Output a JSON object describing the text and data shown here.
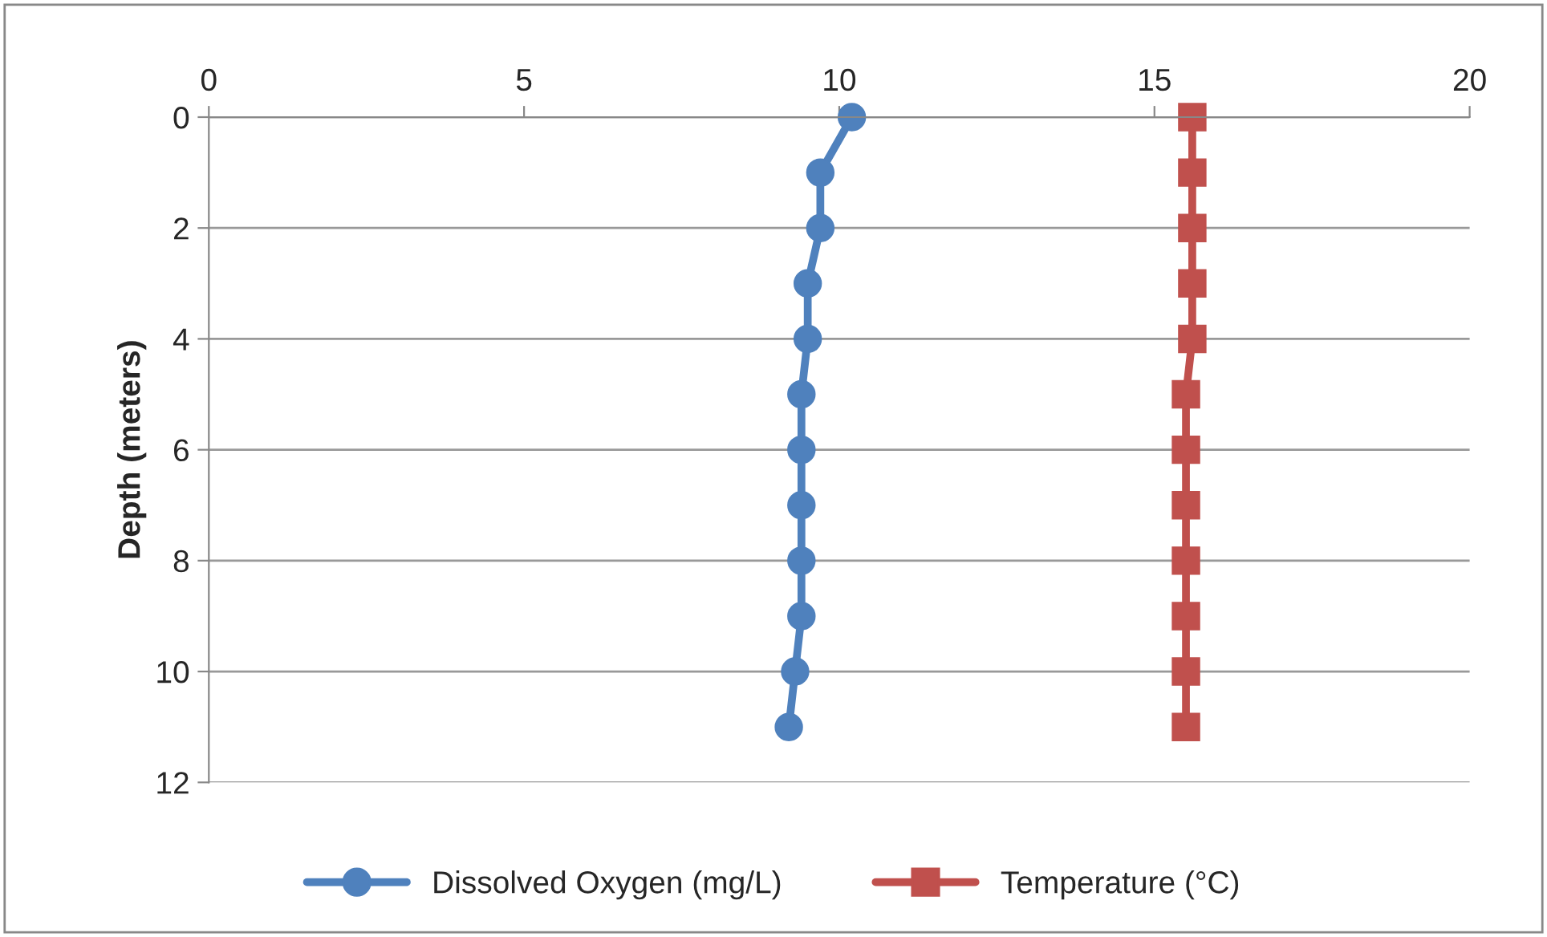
{
  "chart_data": {
    "type": "line",
    "ylabel": "Depth (meters)",
    "xlim": [
      0,
      20
    ],
    "xticks": [
      0,
      5,
      10,
      15,
      20
    ],
    "ylim": [
      12,
      0
    ],
    "yticks": [
      0,
      2,
      4,
      6,
      8,
      10,
      12
    ],
    "grid": "y",
    "legend": "bottom",
    "line_style": "solid",
    "series": [
      {
        "name": "Dissolved Oxygen (mg/L)",
        "color": "#4f81bd",
        "marker": "circle",
        "x": [
          10.2,
          9.7,
          9.7,
          9.5,
          9.5,
          9.4,
          9.4,
          9.4,
          9.4,
          9.4,
          9.3,
          9.2
        ],
        "values": [
          0,
          1,
          2,
          3,
          4,
          5,
          6,
          7,
          8,
          9,
          10,
          11
        ]
      },
      {
        "name": "Temperature (°C)",
        "color": "#c0504d",
        "marker": "square",
        "x": [
          15.6,
          15.6,
          15.6,
          15.6,
          15.6,
          15.5,
          15.5,
          15.5,
          15.5,
          15.5,
          15.5,
          15.5
        ],
        "values": [
          0,
          1,
          2,
          3,
          4,
          5,
          6,
          7,
          8,
          9,
          10,
          11
        ]
      }
    ]
  }
}
